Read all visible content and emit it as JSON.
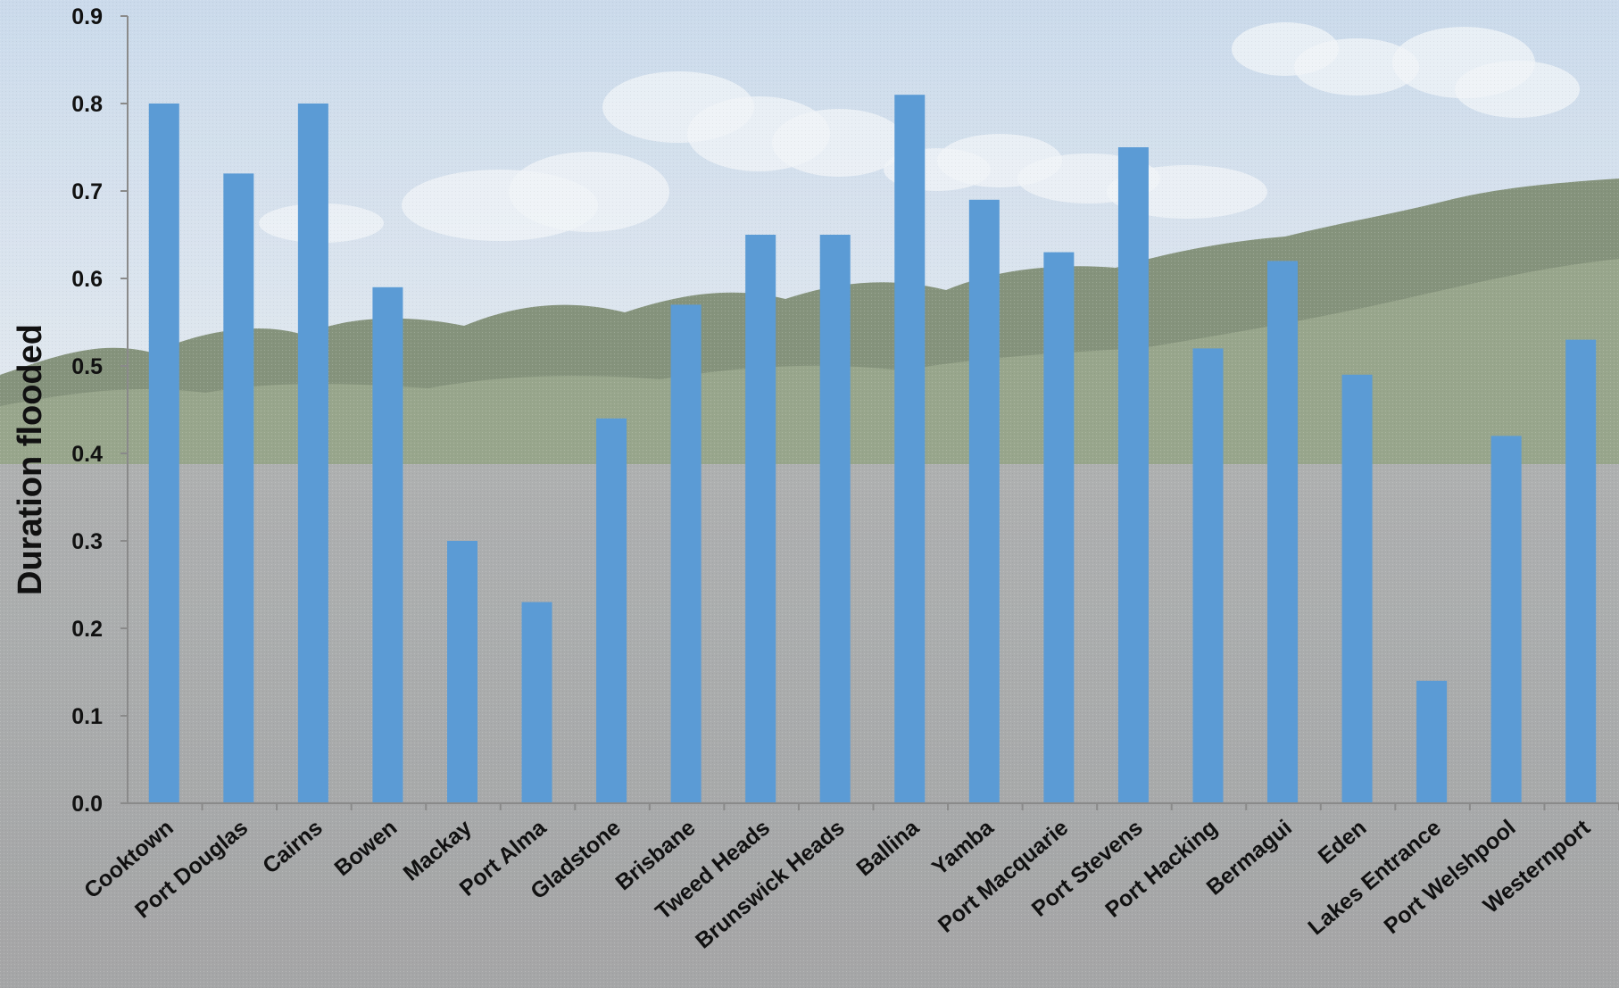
{
  "chart_data": {
    "type": "bar",
    "title": "",
    "xlabel": "",
    "ylabel": "Duration flooded",
    "ylim": [
      0,
      0.9
    ],
    "yticks": [
      "0.0",
      "0.1",
      "0.2",
      "0.3",
      "0.4",
      "0.5",
      "0.6",
      "0.7",
      "0.8",
      "0.9"
    ],
    "grid": false,
    "legend": "none",
    "categories": [
      "Cooktown",
      "Port Douglas",
      "Cairns",
      "Bowen",
      "Mackay",
      "Port Alma",
      "Gladstone",
      "Brisbane",
      "Tweed Heads",
      "Brunswick Heads",
      "Ballina",
      "Yamba",
      "Port Macquarie",
      "Port Stevens",
      "Port Hacking",
      "Bermagui",
      "Eden",
      "Lakes Entrance",
      "Port Welshpool",
      "Westernport"
    ],
    "values": [
      0.8,
      0.72,
      0.8,
      0.59,
      0.3,
      0.23,
      0.44,
      0.57,
      0.65,
      0.65,
      0.81,
      0.69,
      0.63,
      0.75,
      0.52,
      0.62,
      0.49,
      0.14,
      0.42,
      0.53
    ],
    "colors": {
      "bar": "#5b9bd5",
      "axis": "#8a8a8a",
      "text": "#111111",
      "sky_top": "#c6d8ea",
      "sky_bottom": "#dfe7ee",
      "cloud": "#f2f5f8",
      "mangrove": "#8d9c7e",
      "mangrove_dark": "#77876c",
      "water_top": "#a5a8a7",
      "water_bottom": "#9b9c9c"
    }
  }
}
